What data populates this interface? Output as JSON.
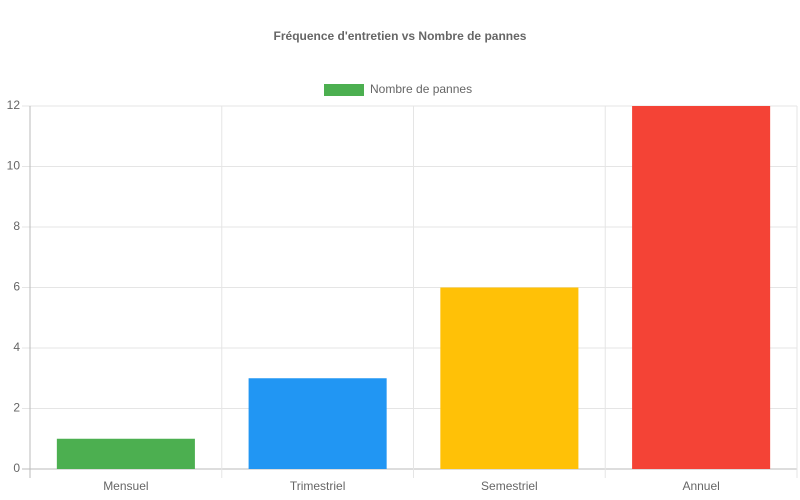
{
  "chart_data": {
    "type": "bar",
    "title": "Fréquence d'entretien vs Nombre de pannes",
    "categories": [
      "Mensuel",
      "Trimestriel",
      "Semestriel",
      "Annuel"
    ],
    "series": [
      {
        "name": "Nombre de pannes",
        "colors": [
          "#4caf50",
          "#2196f3",
          "#ffc107",
          "#f44336"
        ],
        "values": [
          1,
          3,
          6,
          12
        ]
      }
    ],
    "ylim": [
      0,
      12
    ],
    "yticks": [
      0,
      2,
      4,
      6,
      8,
      10,
      12
    ],
    "grid": true,
    "legend": "top"
  }
}
